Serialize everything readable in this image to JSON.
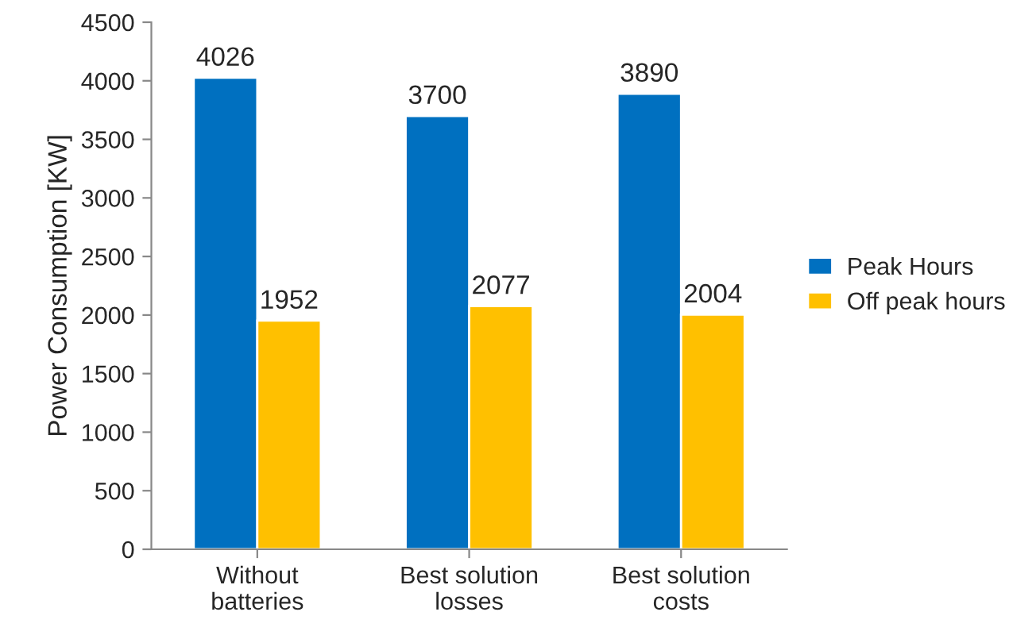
{
  "chart_data": {
    "type": "bar",
    "ylabel": "Power Consumption [KW]",
    "categories": [
      "Without\nbatteries",
      "Best solution\nlosses",
      "Best solution\ncosts"
    ],
    "series": [
      {
        "name": "Peak Hours",
        "color": "#0070c0",
        "values": [
          4026,
          3700,
          3890
        ]
      },
      {
        "name": "Off peak hours",
        "color": "#ffc000",
        "values": [
          1952,
          2077,
          2004
        ]
      }
    ],
    "ylim": [
      0,
      4500
    ],
    "yticks": [
      0,
      500,
      1000,
      1500,
      2000,
      2500,
      3000,
      3500,
      4000,
      4500
    ],
    "grid": false,
    "legend": "right",
    "data_labels": true
  }
}
